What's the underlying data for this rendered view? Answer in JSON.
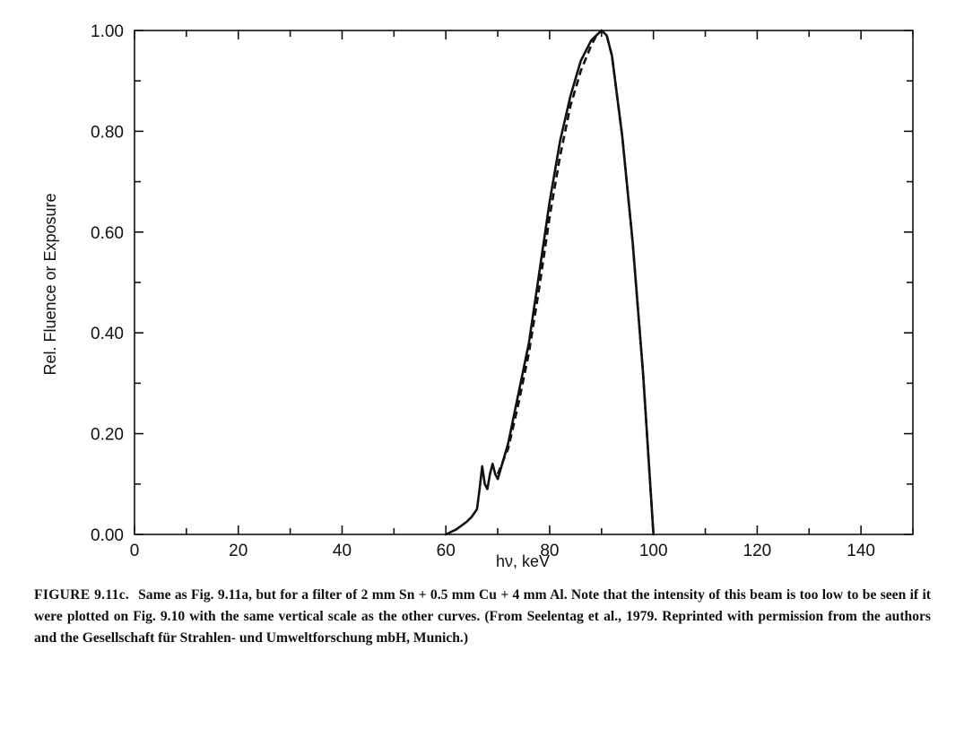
{
  "chart_data": {
    "type": "line",
    "xlabel": "hν, keV",
    "ylabel": "Rel. Fluence or Exposure",
    "xlim": [
      0,
      150
    ],
    "ylim": [
      0,
      1.0
    ],
    "x_ticks": [
      0,
      20,
      40,
      60,
      80,
      100,
      120,
      140
    ],
    "y_ticks": [
      "0.00",
      "0.20",
      "0.40",
      "0.60",
      "0.80",
      "1.00"
    ],
    "grid": false,
    "series": [
      {
        "style": "solid",
        "x": [
          60,
          62,
          64,
          65,
          66,
          66.5,
          67,
          67.5,
          68,
          68.5,
          69,
          69.5,
          70,
          72,
          74,
          76,
          78,
          80,
          82,
          84,
          86,
          88,
          89,
          90,
          91,
          92,
          94,
          96,
          98,
          99,
          100
        ],
        "y": [
          0.0,
          0.01,
          0.025,
          0.035,
          0.05,
          0.09,
          0.135,
          0.1,
          0.09,
          0.12,
          0.14,
          0.12,
          0.11,
          0.18,
          0.28,
          0.38,
          0.52,
          0.66,
          0.78,
          0.87,
          0.94,
          0.98,
          0.99,
          1.0,
          0.99,
          0.95,
          0.79,
          0.58,
          0.32,
          0.16,
          0.0
        ]
      },
      {
        "style": "dashed",
        "x": [
          70,
          72,
          74,
          76,
          78,
          80,
          82,
          84,
          86,
          88,
          89,
          90,
          91,
          92,
          94,
          96,
          98,
          100
        ],
        "y": [
          0.12,
          0.17,
          0.26,
          0.36,
          0.49,
          0.63,
          0.75,
          0.85,
          0.92,
          0.97,
          0.99,
          1.0,
          0.99,
          0.95,
          0.79,
          0.58,
          0.32,
          0.0
        ]
      }
    ]
  },
  "caption": {
    "label": "FIGURE 9.11c.",
    "text": "Same as Fig. 9.11a, but for a filter of 2 mm Sn + 0.5 mm Cu + 4 mm Al. Note that the intensity of this beam is too low to be seen if it were plotted on Fig. 9.10 with the same vertical scale as the other curves. (From Seelentag et al., 1979. Reprinted with permission from the authors and the Gesellschaft für Strahlen- und Umweltforschung mbH, Munich.)"
  }
}
